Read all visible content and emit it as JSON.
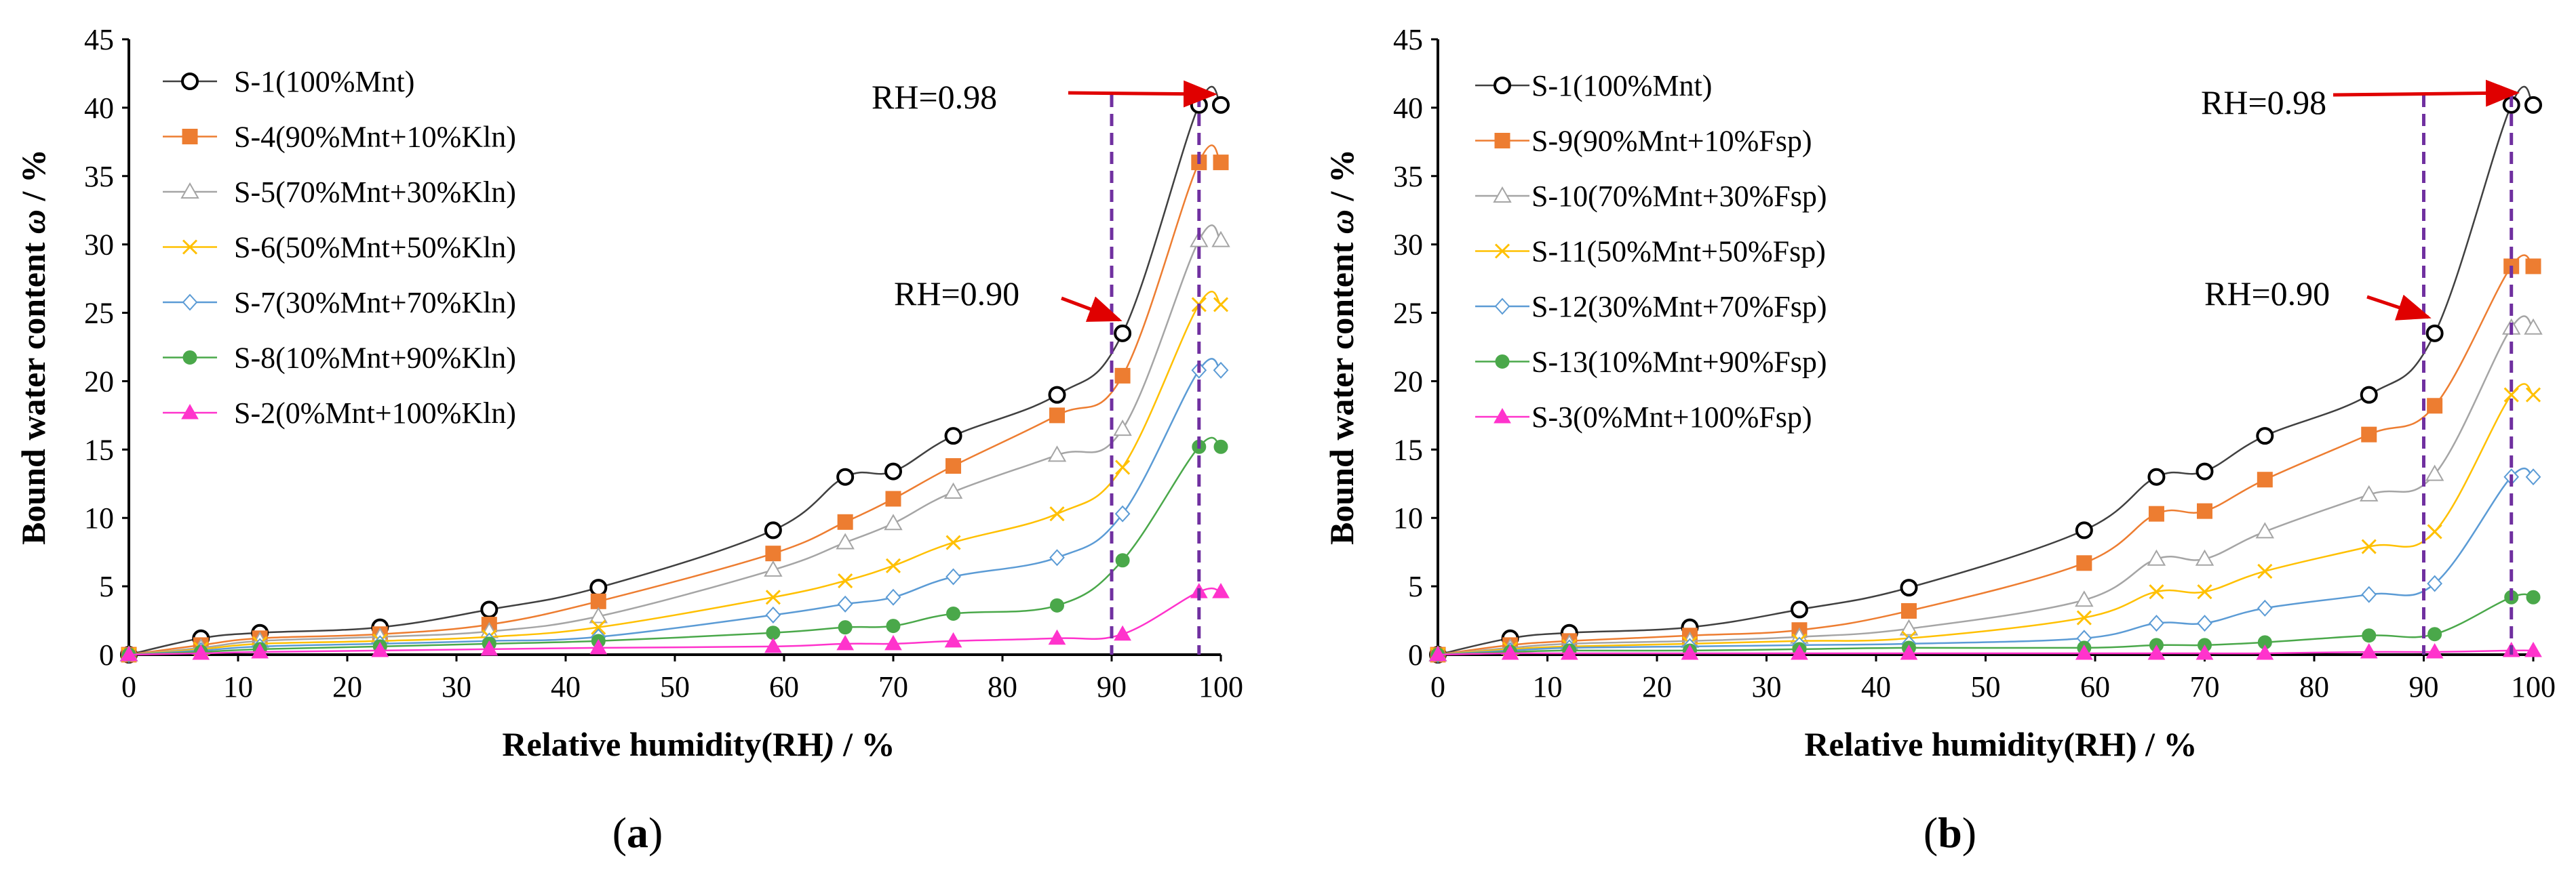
{
  "figure_panels": [
    {
      "panel_label_open": "(",
      "panel_letter": "a",
      "panel_label_close": ")",
      "xlabel_pre": "Relative humidity(RH",
      "xlabel_it": ")",
      "xlabel_post": " / %",
      "ylabel_pre": "Bound water content ",
      "ylabel_it": "ω",
      "ylabel_post": " / %",
      "annotations": [
        "RH=0.98",
        "RH=0.90"
      ],
      "xticks": [
        "0",
        "10",
        "20",
        "30",
        "40",
        "50",
        "60",
        "70",
        "80",
        "90",
        "100"
      ],
      "yticks": [
        "0",
        "5",
        "10",
        "15",
        "20",
        "25",
        "30",
        "35",
        "40",
        "45"
      ]
    },
    {
      "panel_label_open": "(",
      "panel_letter": "b",
      "panel_label_close": ")",
      "xlabel_pre": "Relative humidity(RH) / %",
      "xlabel_it": "",
      "xlabel_post": "",
      "ylabel_pre": "Bound water content ",
      "ylabel_it": "ω",
      "ylabel_post": " / %",
      "annotations": [
        "RH=0.98",
        "RH=0.90"
      ],
      "xticks": [
        "0",
        "10",
        "20",
        "30",
        "40",
        "50",
        "60",
        "70",
        "80",
        "90",
        "100"
      ],
      "yticks": [
        "0",
        "5",
        "10",
        "15",
        "20",
        "25",
        "30",
        "35",
        "40",
        "45"
      ]
    }
  ],
  "chart_data": [
    {
      "type": "line",
      "panel": "a",
      "title": "",
      "xlabel": "Relative humidity(RH) / %",
      "ylabel": "Bound water content ω / %",
      "xlim": [
        0,
        100
      ],
      "ylim": [
        0,
        45
      ],
      "legend_position": "top-left",
      "x": [
        0,
        6.6,
        12,
        23,
        33,
        43,
        59,
        65.6,
        70,
        75.5,
        85,
        91,
        98,
        100
      ],
      "vlines": [
        90,
        98
      ],
      "series": [
        {
          "name": "S-1(100%Mnt)",
          "color": "#404040",
          "marker": "circle",
          "values": [
            0,
            1.2,
            1.6,
            2.0,
            3.3,
            4.9,
            9.1,
            13.0,
            13.4,
            16.0,
            19.0,
            23.5,
            40.2,
            40.2
          ]
        },
        {
          "name": "S-4(90%Mnt+10%Kln)",
          "color": "#ED7D31",
          "marker": "square",
          "values": [
            0,
            0.7,
            1.2,
            1.5,
            2.2,
            3.9,
            7.4,
            9.7,
            11.4,
            13.8,
            17.5,
            20.4,
            36.0,
            36.0
          ]
        },
        {
          "name": "S-5(70%Mnt+30%Kln)",
          "color": "#A5A5A5",
          "marker": "triangle-open",
          "values": [
            0,
            0.5,
            1.0,
            1.3,
            1.7,
            2.8,
            6.2,
            8.2,
            9.6,
            11.9,
            14.6,
            16.5,
            30.3,
            30.3
          ]
        },
        {
          "name": "S-6(50%Mnt+50%Kln)",
          "color": "#FFC000",
          "marker": "x",
          "values": [
            0,
            0.4,
            0.8,
            1.0,
            1.3,
            2.0,
            4.2,
            5.4,
            6.5,
            8.2,
            10.3,
            13.7,
            25.6,
            25.6
          ]
        },
        {
          "name": "S-7(30%Mnt+70%Kln)",
          "color": "#5B9BD5",
          "marker": "diamond-open",
          "values": [
            0,
            0.3,
            0.6,
            0.8,
            1.0,
            1.3,
            2.9,
            3.7,
            4.2,
            5.7,
            7.1,
            10.3,
            20.8,
            20.8
          ]
        },
        {
          "name": "S-8(10%Mnt+90%Kln)",
          "color": "#4AA84A",
          "marker": "circle-filled",
          "values": [
            0,
            0.2,
            0.4,
            0.6,
            0.8,
            1.0,
            1.6,
            2.0,
            2.1,
            3.0,
            3.6,
            6.9,
            15.2,
            15.2
          ]
        },
        {
          "name": "S-2(0%Mnt+100%Kln)",
          "color": "#FF33CC",
          "marker": "triangle-filled",
          "values": [
            0,
            0.1,
            0.2,
            0.3,
            0.4,
            0.5,
            0.6,
            0.8,
            0.8,
            1.0,
            1.2,
            1.5,
            4.6,
            4.6
          ]
        }
      ]
    },
    {
      "type": "line",
      "panel": "b",
      "title": "",
      "xlabel": "Relative humidity(RH) / %",
      "ylabel": "Bound water content ω / %",
      "xlim": [
        0,
        100
      ],
      "ylim": [
        0,
        45
      ],
      "legend_position": "top-left",
      "x": [
        0,
        6.6,
        12,
        23,
        33,
        43,
        59,
        65.6,
        70,
        75.5,
        85,
        91,
        98,
        100
      ],
      "vlines": [
        90,
        98
      ],
      "series": [
        {
          "name": "S-1(100%Mnt)",
          "color": "#404040",
          "marker": "circle",
          "values": [
            0,
            1.2,
            1.6,
            2.0,
            3.3,
            4.9,
            9.1,
            13.0,
            13.4,
            16.0,
            19.0,
            23.5,
            40.2,
            40.2
          ]
        },
        {
          "name": "S-9(90%Mnt+10%Fsp)",
          "color": "#ED7D31",
          "marker": "square",
          "values": [
            0,
            0.7,
            1.0,
            1.4,
            1.8,
            3.2,
            6.7,
            10.3,
            10.5,
            12.8,
            16.1,
            18.2,
            28.4,
            28.4
          ]
        },
        {
          "name": "S-10(70%Mnt+30%Fsp)",
          "color": "#A5A5A5",
          "marker": "triangle-open",
          "values": [
            0,
            0.5,
            0.8,
            1.0,
            1.3,
            1.9,
            4.0,
            7.0,
            7.0,
            9.0,
            11.7,
            13.2,
            23.9,
            23.9
          ]
        },
        {
          "name": "S-11(50%Mnt+50%Fsp)",
          "color": "#FFC000",
          "marker": "x",
          "values": [
            0,
            0.4,
            0.6,
            0.8,
            1.0,
            1.2,
            2.7,
            4.6,
            4.6,
            6.1,
            7.9,
            9.0,
            19.0,
            19.0
          ]
        },
        {
          "name": "S-12(30%Mnt+70%Fsp)",
          "color": "#5B9BD5",
          "marker": "diamond-open",
          "values": [
            0,
            0.3,
            0.5,
            0.6,
            0.7,
            0.8,
            1.2,
            2.3,
            2.3,
            3.4,
            4.4,
            5.2,
            13.0,
            13.0
          ]
        },
        {
          "name": "S-13(10%Mnt+90%Fsp)",
          "color": "#4AA84A",
          "marker": "circle-filled",
          "values": [
            0,
            0.2,
            0.3,
            0.3,
            0.4,
            0.5,
            0.5,
            0.7,
            0.7,
            0.9,
            1.4,
            1.5,
            4.2,
            4.2
          ]
        },
        {
          "name": "S-3(0%Mnt+100%Fsp)",
          "color": "#FF33CC",
          "marker": "triangle-filled",
          "values": [
            0,
            0.1,
            0.1,
            0.1,
            0.1,
            0.1,
            0.1,
            0.1,
            0.1,
            0.1,
            0.2,
            0.2,
            0.3,
            0.3
          ]
        }
      ]
    }
  ]
}
